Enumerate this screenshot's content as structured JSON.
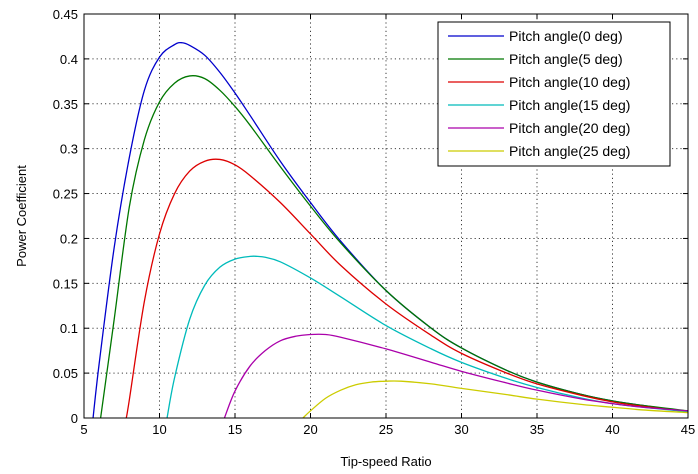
{
  "chart_data": {
    "type": "line",
    "title": "",
    "xlabel": "Tip-speed Ratio",
    "ylabel": "Power Coefficient",
    "xlim": [
      5,
      45
    ],
    "ylim": [
      0,
      0.45
    ],
    "xticks": [
      5,
      10,
      15,
      20,
      25,
      30,
      35,
      40,
      45
    ],
    "yticks": [
      0,
      0.05,
      0.1,
      0.15,
      0.2,
      0.25,
      0.3,
      0.35,
      0.4,
      0.45
    ],
    "ytick_labels": [
      "0",
      "0.05",
      "0.1",
      "0.15",
      "0.2",
      "0.25",
      "0.3",
      "0.35",
      "0.4",
      "0.45"
    ],
    "grid": true,
    "legend_position": "top-right",
    "series": [
      {
        "name": "Pitch angle(0 deg)",
        "color": "#0000cc",
        "x": [
          5.6,
          6,
          7,
          8,
          9,
          10,
          11,
          11.5,
          12,
          13,
          14,
          15,
          16,
          18,
          20,
          22,
          25,
          28,
          30,
          33,
          35,
          38,
          40,
          42,
          45
        ],
        "y": [
          0,
          0.06,
          0.19,
          0.29,
          0.365,
          0.402,
          0.416,
          0.418,
          0.415,
          0.404,
          0.385,
          0.362,
          0.337,
          0.286,
          0.24,
          0.197,
          0.142,
          0.1,
          0.078,
          0.053,
          0.04,
          0.026,
          0.019,
          0.014,
          0.007
        ]
      },
      {
        "name": "Pitch angle(5 deg)",
        "color": "#007700",
        "x": [
          6.1,
          7,
          8,
          9,
          10,
          11,
          12,
          13,
          14,
          15,
          16,
          18,
          20,
          22,
          25,
          28,
          30,
          33,
          35,
          38,
          40,
          42,
          45
        ],
        "y": [
          0,
          0.11,
          0.235,
          0.31,
          0.352,
          0.373,
          0.381,
          0.378,
          0.365,
          0.347,
          0.326,
          0.28,
          0.236,
          0.195,
          0.142,
          0.1,
          0.078,
          0.053,
          0.04,
          0.026,
          0.019,
          0.014,
          0.008
        ]
      },
      {
        "name": "Pitch angle(10 deg)",
        "color": "#dd0000",
        "x": [
          7.8,
          8,
          9,
          10,
          11,
          12,
          13,
          14,
          15,
          16,
          18,
          20,
          22,
          25,
          28,
          30,
          33,
          35,
          38,
          40,
          42,
          45
        ],
        "y": [
          0,
          0.02,
          0.13,
          0.205,
          0.25,
          0.275,
          0.286,
          0.288,
          0.282,
          0.27,
          0.24,
          0.205,
          0.17,
          0.127,
          0.092,
          0.072,
          0.05,
          0.038,
          0.025,
          0.018,
          0.013,
          0.007
        ]
      },
      {
        "name": "Pitch angle(15 deg)",
        "color": "#00bbbb",
        "x": [
          10.5,
          11,
          12,
          13,
          14,
          15,
          16,
          16.5,
          17,
          18,
          20,
          22,
          25,
          28,
          30,
          33,
          35,
          38,
          40,
          42,
          45
        ],
        "y": [
          0,
          0.045,
          0.11,
          0.148,
          0.168,
          0.177,
          0.18,
          0.18,
          0.179,
          0.174,
          0.156,
          0.135,
          0.103,
          0.077,
          0.062,
          0.044,
          0.034,
          0.022,
          0.016,
          0.012,
          0.007
        ]
      },
      {
        "name": "Pitch angle(20 deg)",
        "color": "#aa00aa",
        "x": [
          14.3,
          15,
          16,
          17,
          18,
          19,
          20,
          21,
          22,
          25,
          28,
          30,
          33,
          35,
          38,
          40,
          42,
          45
        ],
        "y": [
          0,
          0.03,
          0.058,
          0.075,
          0.086,
          0.091,
          0.093,
          0.093,
          0.09,
          0.077,
          0.062,
          0.052,
          0.039,
          0.031,
          0.021,
          0.016,
          0.012,
          0.008
        ]
      },
      {
        "name": "Pitch angle(25 deg)",
        "color": "#cccc00",
        "x": [
          19.5,
          20,
          21,
          22,
          23,
          24,
          25,
          26,
          28,
          30,
          33,
          35,
          38,
          40,
          42,
          45
        ],
        "y": [
          0,
          0.008,
          0.022,
          0.031,
          0.037,
          0.04,
          0.041,
          0.041,
          0.038,
          0.033,
          0.026,
          0.021,
          0.015,
          0.012,
          0.009,
          0.006
        ]
      }
    ]
  }
}
